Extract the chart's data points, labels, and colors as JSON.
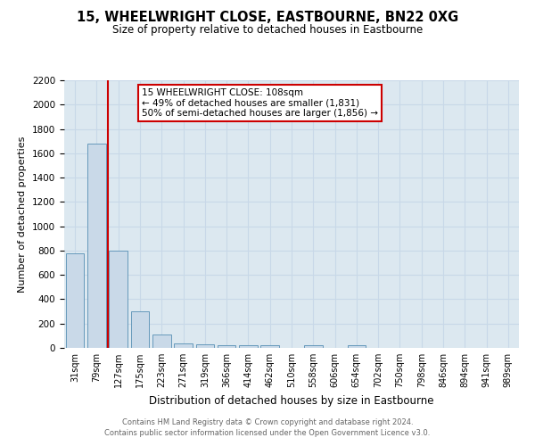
{
  "title": "15, WHEELWRIGHT CLOSE, EASTBOURNE, BN22 0XG",
  "subtitle": "Size of property relative to detached houses in Eastbourne",
  "xlabel": "Distribution of detached houses by size in Eastbourne",
  "ylabel": "Number of detached properties",
  "bar_labels": [
    "31sqm",
    "79sqm",
    "127sqm",
    "175sqm",
    "223sqm",
    "271sqm",
    "319sqm",
    "366sqm",
    "414sqm",
    "462sqm",
    "510sqm",
    "558sqm",
    "606sqm",
    "654sqm",
    "702sqm",
    "750sqm",
    "798sqm",
    "846sqm",
    "894sqm",
    "941sqm",
    "989sqm"
  ],
  "bar_heights": [
    780,
    1680,
    800,
    300,
    110,
    40,
    30,
    20,
    20,
    20,
    0,
    20,
    0,
    20,
    0,
    0,
    0,
    0,
    0,
    0,
    0
  ],
  "bar_color": "#c9d9e8",
  "bar_edge_color": "#6699bb",
  "vline_color": "#cc0000",
  "annotation_text": "15 WHEELWRIGHT CLOSE: 108sqm\n← 49% of detached houses are smaller (1,831)\n50% of semi-detached houses are larger (1,856) →",
  "annotation_box_color": "#ffffff",
  "annotation_border_color": "#cc0000",
  "ylim": [
    0,
    2200
  ],
  "yticks": [
    0,
    200,
    400,
    600,
    800,
    1000,
    1200,
    1400,
    1600,
    1800,
    2000,
    2200
  ],
  "grid_color": "#c8d8e8",
  "background_color": "#dce8f0",
  "footer_line1": "Contains HM Land Registry data © Crown copyright and database right 2024.",
  "footer_line2": "Contains public sector information licensed under the Open Government Licence v3.0."
}
